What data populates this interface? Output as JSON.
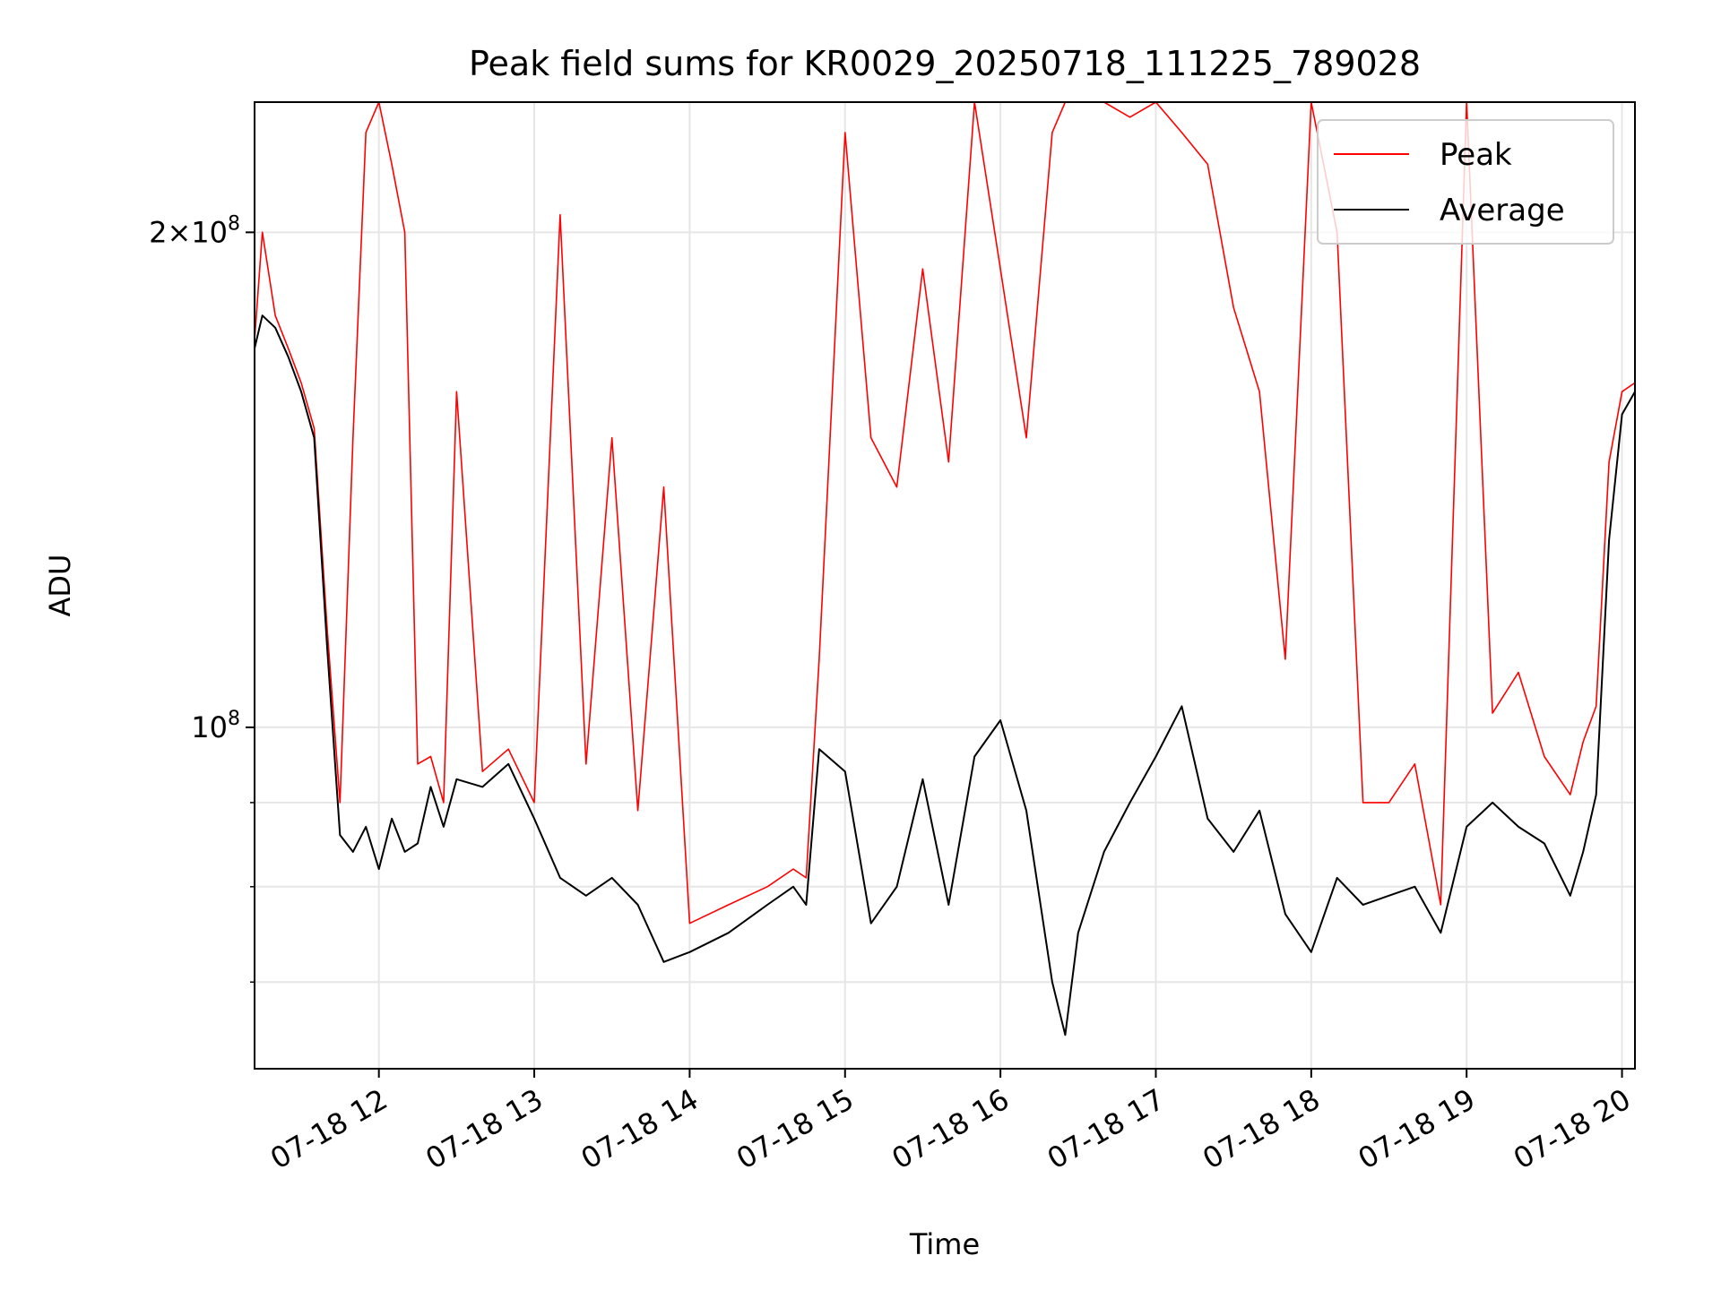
{
  "chart_data": {
    "type": "line",
    "title": "Peak field sums for KR0029_20250718_111225_789028",
    "xlabel": "Time",
    "ylabel": "ADU",
    "y_scale": "log",
    "xlim": [
      "07-18 11:12",
      "07-18 20:05"
    ],
    "ylim": [
      62000000,
      240000000
    ],
    "grid": true,
    "legend_position": "top-right",
    "x_ticks": [
      "07-18 12",
      "07-18 13",
      "07-18 14",
      "07-18 15",
      "07-18 16",
      "07-18 17",
      "07-18 18",
      "07-18 19",
      "07-18 20"
    ],
    "y_ticks_major": [
      {
        "value": 100000000,
        "base": "10",
        "exp": "8"
      },
      {
        "value": 200000000,
        "coef": "2",
        "base": "10",
        "exp": "8"
      }
    ],
    "y_ticks_minor": [
      70000000,
      80000000,
      90000000
    ],
    "x": [
      "07-18 11:12",
      "07-18 11:15",
      "07-18 11:20",
      "07-18 11:25",
      "07-18 11:30",
      "07-18 11:35",
      "07-18 11:40",
      "07-18 11:45",
      "07-18 11:50",
      "07-18 11:55",
      "07-18 12:00",
      "07-18 12:05",
      "07-18 12:10",
      "07-18 12:15",
      "07-18 12:20",
      "07-18 12:25",
      "07-18 12:30",
      "07-18 12:40",
      "07-18 12:50",
      "07-18 13:00",
      "07-18 13:10",
      "07-18 13:20",
      "07-18 13:30",
      "07-18 13:40",
      "07-18 13:50",
      "07-18 14:00",
      "07-18 14:15",
      "07-18 14:30",
      "07-18 14:40",
      "07-18 14:45",
      "07-18 14:50",
      "07-18 15:00",
      "07-18 15:10",
      "07-18 15:20",
      "07-18 15:30",
      "07-18 15:40",
      "07-18 15:50",
      "07-18 16:00",
      "07-18 16:10",
      "07-18 16:20",
      "07-18 16:25",
      "07-18 16:30",
      "07-18 16:40",
      "07-18 16:50",
      "07-18 17:00",
      "07-18 17:10",
      "07-18 17:20",
      "07-18 17:30",
      "07-18 17:40",
      "07-18 17:50",
      "07-18 18:00",
      "07-18 18:10",
      "07-18 18:20",
      "07-18 18:30",
      "07-18 18:40",
      "07-18 18:50",
      "07-18 19:00",
      "07-18 19:10",
      "07-18 19:20",
      "07-18 19:30",
      "07-18 19:40",
      "07-18 19:45",
      "07-18 19:50",
      "07-18 19:55",
      "07-18 20:00",
      "07-18 20:05"
    ],
    "series": [
      {
        "name": "Average",
        "color": "#000000",
        "values": [
          170000000,
          178000000,
          175000000,
          168000000,
          160000000,
          150000000,
          112000000,
          86000000,
          84000000,
          87000000,
          82000000,
          88000000,
          84000000,
          85000000,
          92000000,
          87000000,
          93000000,
          92000000,
          95000000,
          88000000,
          81000000,
          79000000,
          81000000,
          78000000,
          72000000,
          73000000,
          75000000,
          78000000,
          80000000,
          78000000,
          97000000,
          94000000,
          76000000,
          80000000,
          93000000,
          78000000,
          96000000,
          101000000,
          89000000,
          70000000,
          65000000,
          75000000,
          84000000,
          90000000,
          96000000,
          103000000,
          88000000,
          84000000,
          89000000,
          77000000,
          73000000,
          81000000,
          78000000,
          79000000,
          80000000,
          75000000,
          87000000,
          90000000,
          87000000,
          85000000,
          79000000,
          84000000,
          91000000,
          130000000,
          155000000,
          160000000
        ]
      },
      {
        "name": "Peak",
        "color": "#ff0000",
        "values": [
          172000000,
          200000000,
          178000000,
          170000000,
          162000000,
          152000000,
          115000000,
          90000000,
          150000000,
          230000000,
          240000000,
          220000000,
          200000000,
          95000000,
          96000000,
          90000000,
          160000000,
          94000000,
          97000000,
          90000000,
          205000000,
          95000000,
          150000000,
          89000000,
          140000000,
          76000000,
          78000000,
          80000000,
          82000000,
          81000000,
          110000000,
          230000000,
          150000000,
          140000000,
          190000000,
          145000000,
          240000000,
          190000000,
          150000000,
          230000000,
          240000000,
          240000000,
          240000000,
          235000000,
          240000000,
          230000000,
          220000000,
          180000000,
          160000000,
          110000000,
          240000000,
          200000000,
          90000000,
          90000000,
          95000000,
          78000000,
          240000000,
          102000000,
          108000000,
          96000000,
          91000000,
          98000000,
          103000000,
          145000000,
          160000000,
          162000000
        ]
      }
    ]
  }
}
